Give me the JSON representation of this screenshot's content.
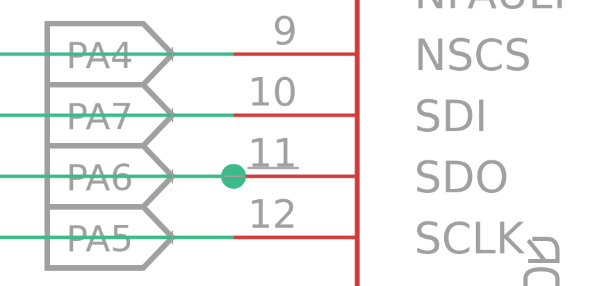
{
  "colors": {
    "net_wire": "#3dba8a",
    "pin_line": "#d23b3b",
    "outline": "#a0a0a0",
    "text": "#a0a0a0",
    "background": "#ffffff"
  },
  "ports": [
    {
      "label": "PA4"
    },
    {
      "label": "PA7"
    },
    {
      "label": "PA6"
    },
    {
      "label": "PA5"
    }
  ],
  "pins": [
    {
      "number": "9",
      "name": "NSCS"
    },
    {
      "number": "10",
      "name": "SDI"
    },
    {
      "number": "11",
      "name": "SDO"
    },
    {
      "number": "12",
      "name": "SCLK"
    }
  ],
  "top_partial_label": "NFAULT",
  "junction_on_pin": "11"
}
